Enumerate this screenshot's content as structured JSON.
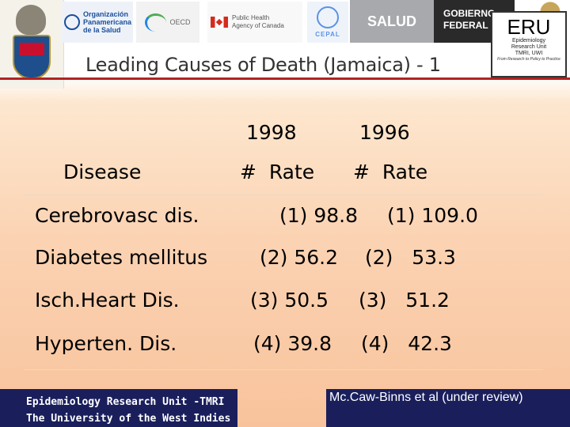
{
  "header": {
    "logos": {
      "paho": [
        "Organización",
        "Panamericana",
        "de la Salud"
      ],
      "oecd": "OECD",
      "phac": [
        "Public Health",
        "Agency of Canada"
      ],
      "cepal": "CEPAL",
      "salud": "SALUD",
      "gobierno": [
        "GOBIERNO",
        "FEDERAL"
      ]
    },
    "eru": {
      "abbr": "ERU",
      "line1": "Epidemiology",
      "line2": "Research Unit",
      "line3": "TMRI, UWI",
      "tagline": "From Research to Policy to Practice"
    },
    "brand_color": "#b22222"
  },
  "slide": {
    "title": "Leading Causes of Death (Jamaica) - 1"
  },
  "table": {
    "years": [
      "1998",
      "1996"
    ],
    "col_disease": "Disease",
    "col_sub": [
      "#  Rate",
      "#  Rate"
    ],
    "rows": [
      {
        "disease": "Cerebrovasc dis.",
        "y1998": "(1) 98.8",
        "y1996": "(1) 109.0"
      },
      {
        "disease": "Diabetes mellitus",
        "y1998": "(2) 56.2",
        "y1996": "(2)   53.3"
      },
      {
        "disease": "Isch.Heart Dis.",
        "y1998": "(3) 50.5",
        "y1996": "(3)   51.2"
      },
      {
        "disease": "Hyperten. Dis.",
        "y1998": "(4) 39.8",
        "y1996": "(4)   42.3"
      }
    ]
  },
  "footer": {
    "left_line1": "Epidemiology Research Unit -TMRI",
    "left_line2": "The University of the West Indies",
    "right": "Mc.Caw-Binns et al (under review)",
    "bg_color": "#1a1f5c"
  }
}
